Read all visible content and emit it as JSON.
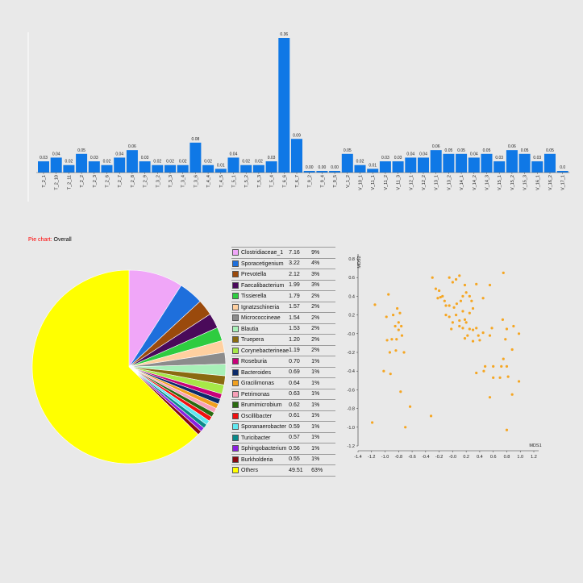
{
  "chart_data": [
    {
      "type": "bar",
      "categories": [
        "T_2_1",
        "T_2_10",
        "T_2_11",
        "T_2_2",
        "T_2_3",
        "T_2_6",
        "T_2_7",
        "T_2_8",
        "T_2_9",
        "T_3_2",
        "T_3_3",
        "T_3_4",
        "T_3_6",
        "T_4_4",
        "T_4_5",
        "T_5_1",
        "T_5_2",
        "T_5_3",
        "T_5_4",
        "T_6_6",
        "T_6_7",
        "T_9_2",
        "T_9_4",
        "T_9_5",
        "V_1_2",
        "V_10_1",
        "V_11_1",
        "V_11_2",
        "V_11_3",
        "V_12_1",
        "V_12_2",
        "V_13_1",
        "V_13_2",
        "V_14_1",
        "V_14_2",
        "V_14_3",
        "V_15_1",
        "V_15_2",
        "V_15_3",
        "V_16_1",
        "V_16_2",
        "V_17_1"
      ],
      "values": [
        0.03,
        0.04,
        0.02,
        0.05,
        0.03,
        0.02,
        0.04,
        0.06,
        0.03,
        0.02,
        0.02,
        0.02,
        0.08,
        0.02,
        0.01,
        0.04,
        0.02,
        0.02,
        0.03,
        0.36,
        0.09,
        0.0,
        0.0,
        0.0,
        0.05,
        0.02,
        0.01,
        0.03,
        0.03,
        0.04,
        0.04,
        0.06,
        0.05,
        0.05,
        0.04,
        0.05,
        0.03,
        0.06,
        0.05,
        0.03,
        0.05,
        0.0
      ],
      "labels": [
        "0.03",
        "0.04",
        "0.02",
        "0.05",
        "0.03",
        "0.02",
        "0.04",
        "0.06",
        "0.03",
        "0.02",
        "0.02",
        "0.02",
        "0.08",
        "0.02",
        "0.01",
        "0.04",
        "0.02",
        "0.02",
        "0.03",
        "0.36",
        "0.09",
        "0.00",
        "0.00",
        "0.00",
        "0.05",
        "0.02",
        "0.01",
        "0.03",
        "0.03",
        "0.04",
        "0.04",
        "0.06",
        "0.05",
        "0.05",
        "0.04",
        "0.05",
        "0.03",
        "0.06",
        "0.05",
        "0.03",
        "0.05",
        "0.0"
      ],
      "color": "#0f78e6",
      "ylim": [
        0,
        0.36
      ]
    },
    {
      "type": "pie",
      "title_prefix": "Pie chart:",
      "title": "Overall",
      "slices": [
        {
          "name": "Clostridiaceae_1",
          "value": "7.16",
          "pct": "9%",
          "color": "#f0a6f8"
        },
        {
          "name": "Sporacetigenium",
          "value": "3.22",
          "pct": "4%",
          "color": "#1e6fdc"
        },
        {
          "name": "Prevotella",
          "value": "2.12",
          "pct": "3%",
          "color": "#9a4a0c"
        },
        {
          "name": "Faecalibacterium",
          "value": "1.99",
          "pct": "3%",
          "color": "#4a0a5a"
        },
        {
          "name": "Tissierella",
          "value": "1.79",
          "pct": "2%",
          "color": "#2ecc40"
        },
        {
          "name": "Ignatzschineria",
          "value": "1.57",
          "pct": "2%",
          "color": "#ffd0a0"
        },
        {
          "name": "Micrococcineae",
          "value": "1.54",
          "pct": "2%",
          "color": "#8c8c8c"
        },
        {
          "name": "Blautia",
          "value": "1.53",
          "pct": "2%",
          "color": "#a8f0b8"
        },
        {
          "name": "Truepera",
          "value": "1.20",
          "pct": "2%",
          "color": "#8a6a10"
        },
        {
          "name": "Corynebacterineae",
          "value": "1.19",
          "pct": "2%",
          "color": "#a6e848"
        },
        {
          "name": "Roseburia",
          "value": "0.70",
          "pct": "1%",
          "color": "#c8007a"
        },
        {
          "name": "Bacteroides",
          "value": "0.69",
          "pct": "1%",
          "color": "#0a2a6a"
        },
        {
          "name": "Gracilimonas",
          "value": "0.64",
          "pct": "1%",
          "color": "#f0a020"
        },
        {
          "name": "Petrimonas",
          "value": "0.63",
          "pct": "1%",
          "color": "#f8a0b8"
        },
        {
          "name": "Brumimicrobium",
          "value": "0.62",
          "pct": "1%",
          "color": "#2a6a10"
        },
        {
          "name": "Oscillibacter",
          "value": "0.61",
          "pct": "1%",
          "color": "#f01010"
        },
        {
          "name": "Sporanaerobacter",
          "value": "0.59",
          "pct": "1%",
          "color": "#60e8f0"
        },
        {
          "name": "Turicibacter",
          "value": "0.57",
          "pct": "1%",
          "color": "#0a8a8a"
        },
        {
          "name": "Sphingobacterium",
          "value": "0.56",
          "pct": "1%",
          "color": "#8a20e0"
        },
        {
          "name": "Burkholderia",
          "value": "0.55",
          "pct": "1%",
          "color": "#8a0a10"
        },
        {
          "name": "Others",
          "value": "49.51",
          "pct": "63%",
          "color": "#ffff00"
        }
      ]
    },
    {
      "type": "scatter",
      "xlabel": "MDS1",
      "ylabel": "MDS2",
      "xlim": [
        -1.4,
        1.2
      ],
      "ylim": [
        -1.2,
        0.8
      ],
      "xticks": [
        "-1.4",
        "-1.2",
        "-1.0",
        "-0.8",
        "-0.6",
        "-0.4",
        "-0.2",
        "-0.0",
        "0.2",
        "0.4",
        "0.6",
        "0.8",
        "1.0",
        "1.2"
      ],
      "yticks": [
        "0.8",
        "0.6",
        "0.4",
        "0.2",
        "-0.0",
        "-0.2",
        "-0.4",
        "-0.6",
        "-0.8",
        "-1.0",
        "-1.2"
      ],
      "color": "#f5a623",
      "points": [
        [
          -1.15,
          0.31
        ],
        [
          -0.95,
          0.42
        ],
        [
          -0.98,
          0.18
        ],
        [
          -0.88,
          0.2
        ],
        [
          -0.82,
          0.27
        ],
        [
          -0.78,
          0.22
        ],
        [
          -0.8,
          0.12
        ],
        [
          -0.85,
          0.08
        ],
        [
          -0.76,
          0.08
        ],
        [
          -0.8,
          0.04
        ],
        [
          -0.9,
          -0.06
        ],
        [
          -0.97,
          -0.07
        ],
        [
          -0.83,
          -0.06
        ],
        [
          -0.75,
          -0.02
        ],
        [
          -0.93,
          -0.2
        ],
        [
          -0.84,
          -0.18
        ],
        [
          -0.72,
          -0.2
        ],
        [
          -1.02,
          -0.4
        ],
        [
          -0.92,
          -0.43
        ],
        [
          -0.77,
          -0.62
        ],
        [
          -0.63,
          -0.78
        ],
        [
          -1.19,
          -0.95
        ],
        [
          -0.7,
          -1.0
        ],
        [
          -0.32,
          -0.88
        ],
        [
          -0.3,
          0.6
        ],
        [
          -0.25,
          0.48
        ],
        [
          -0.2,
          0.46
        ],
        [
          -0.22,
          0.38
        ],
        [
          -0.18,
          0.39
        ],
        [
          -0.15,
          0.4
        ],
        [
          -0.12,
          0.35
        ],
        [
          -0.1,
          0.3
        ],
        [
          -0.05,
          0.6
        ],
        [
          0.0,
          0.55
        ],
        [
          0.05,
          0.58
        ],
        [
          0.1,
          0.62
        ],
        [
          0.18,
          0.52
        ],
        [
          0.35,
          0.53
        ],
        [
          0.45,
          0.38
        ],
        [
          0.55,
          0.52
        ],
        [
          0.75,
          0.65
        ],
        [
          -0.05,
          0.3
        ],
        [
          0.02,
          0.28
        ],
        [
          0.06,
          0.32
        ],
        [
          0.12,
          0.35
        ],
        [
          0.15,
          0.4
        ],
        [
          0.2,
          0.44
        ],
        [
          0.25,
          0.4
        ],
        [
          0.28,
          0.35
        ],
        [
          -0.1,
          0.2
        ],
        [
          -0.05,
          0.18
        ],
        [
          0.05,
          0.2
        ],
        [
          0.15,
          0.24
        ],
        [
          0.25,
          0.22
        ],
        [
          0.3,
          0.27
        ],
        [
          0.18,
          0.15
        ],
        [
          0.1,
          0.14
        ],
        [
          0.0,
          0.12
        ],
        [
          -0.02,
          0.05
        ],
        [
          0.1,
          0.08
        ],
        [
          0.15,
          0.06
        ],
        [
          0.2,
          0.12
        ],
        [
          0.25,
          0.05
        ],
        [
          0.3,
          0.04
        ],
        [
          0.38,
          -0.02
        ],
        [
          0.35,
          0.06
        ],
        [
          0.22,
          -0.02
        ],
        [
          0.18,
          -0.05
        ],
        [
          0.3,
          -0.08
        ],
        [
          0.4,
          -0.07
        ],
        [
          0.45,
          0.01
        ],
        [
          0.55,
          -0.02
        ],
        [
          0.58,
          0.06
        ],
        [
          0.74,
          0.15
        ],
        [
          0.8,
          0.05
        ],
        [
          0.9,
          0.08
        ],
        [
          0.98,
          0.0
        ],
        [
          0.78,
          -0.06
        ],
        [
          0.88,
          -0.17
        ],
        [
          0.75,
          -0.27
        ],
        [
          0.72,
          -0.35
        ],
        [
          0.8,
          -0.35
        ],
        [
          0.82,
          -0.46
        ],
        [
          0.98,
          -0.51
        ],
        [
          0.88,
          -0.65
        ],
        [
          0.7,
          -0.47
        ],
        [
          0.6,
          -0.47
        ],
        [
          0.55,
          -0.68
        ],
        [
          0.48,
          -0.35
        ],
        [
          0.46,
          -0.4
        ],
        [
          0.35,
          -0.42
        ],
        [
          0.6,
          -0.35
        ],
        [
          0.8,
          -1.03
        ]
      ]
    }
  ]
}
